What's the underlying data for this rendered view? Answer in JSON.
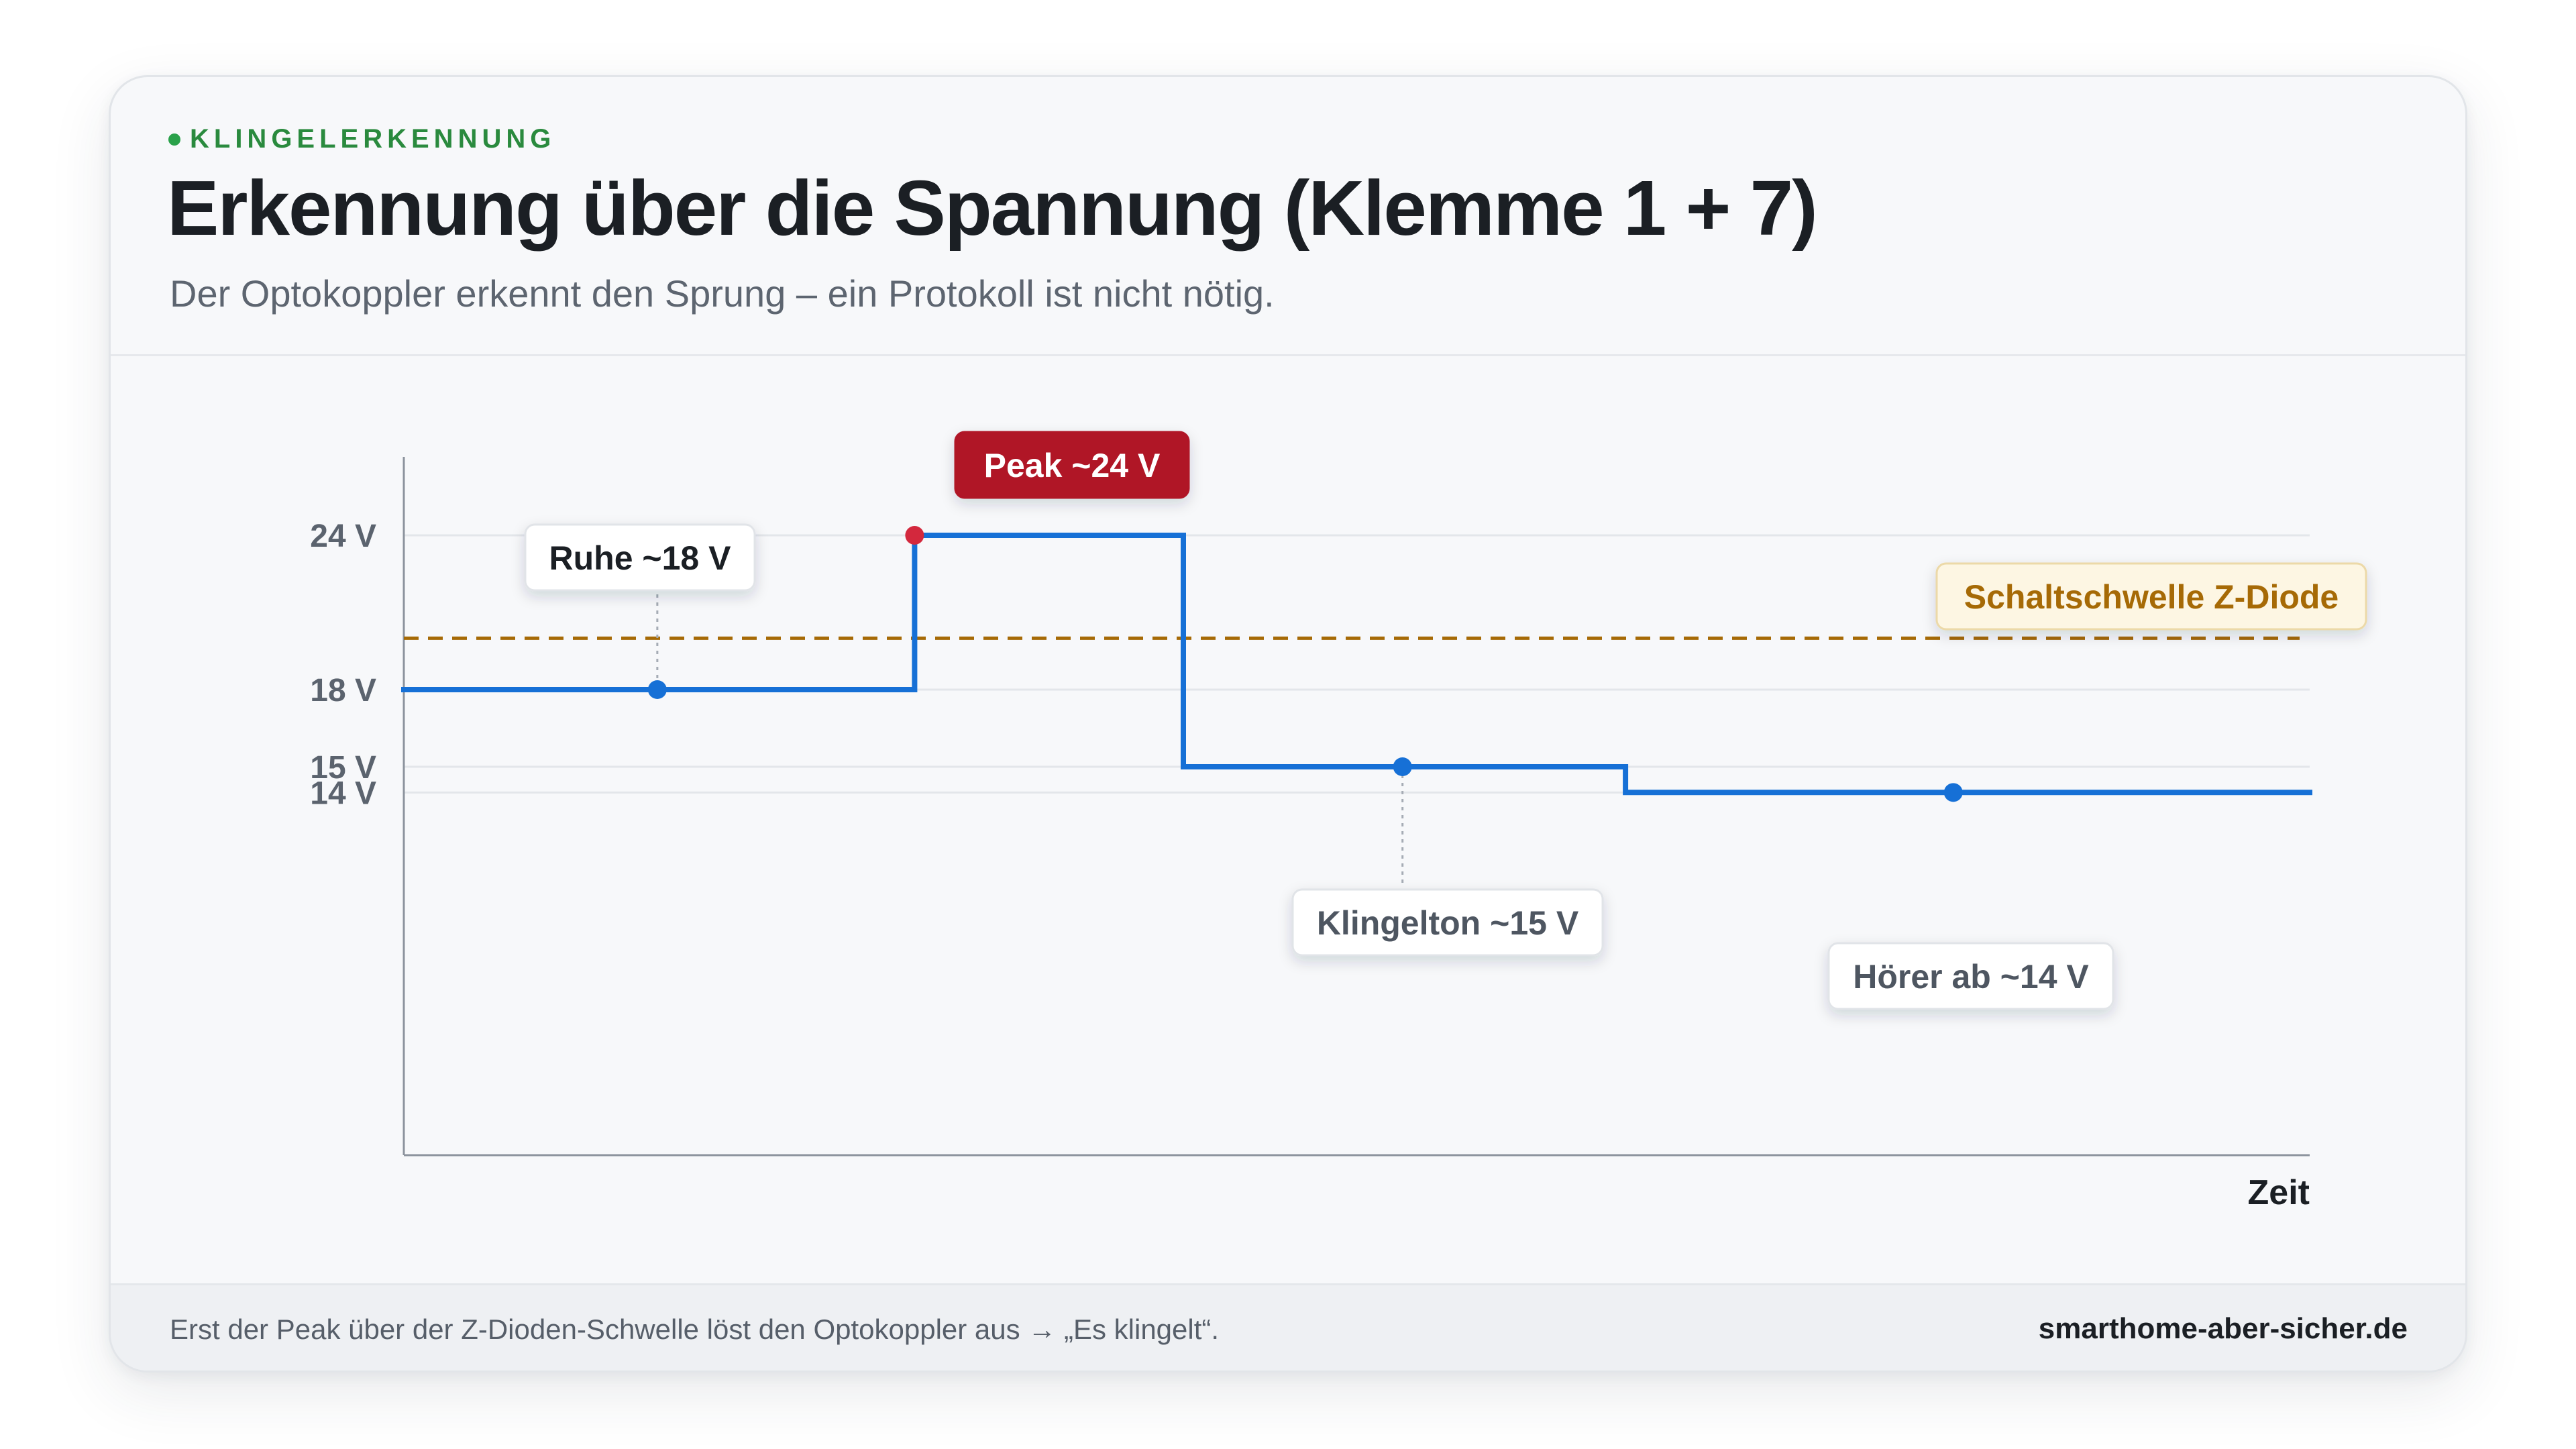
{
  "header": {
    "eyebrow": "KLINGELERKENNUNG",
    "title": "Erkennung über die Spannung (Klemme 1 + 7)",
    "subtitle": "Der Optokoppler erkennt den Sprung – ein Protokoll ist nicht nötig."
  },
  "footer": {
    "note": "Erst der Peak über der Z-Dioden-Schwelle löst den Optokoppler aus → „Es klingelt“.",
    "brand": "smarthome-aber-sicher.de"
  },
  "colors": {
    "line": "#1670d6",
    "peak": "#b01227",
    "threshold": "#a66a06",
    "threshold_label_bg": "#fdf6e3"
  },
  "chart_data": {
    "type": "line",
    "xlabel": "Zeit",
    "ylabel": "",
    "ylim": [
      0,
      24
    ],
    "xlim": [
      0,
      100
    ],
    "y_ticks": [
      {
        "value": 24,
        "label": "24 V"
      },
      {
        "value": 18,
        "label": "18 V"
      },
      {
        "value": 15,
        "label": "15 V"
      },
      {
        "value": 14,
        "label": "14 V"
      }
    ],
    "grid": true,
    "series": [
      {
        "step": [
          {
            "x": 0,
            "y": 18
          },
          {
            "x": 26.8,
            "y": 18
          },
          {
            "x": 26.8,
            "y": 24
          },
          {
            "x": 40.9,
            "y": 24
          },
          {
            "x": 40.9,
            "y": 15
          },
          {
            "x": 64.1,
            "y": 15
          },
          {
            "x": 64.1,
            "y": 14
          },
          {
            "x": 100,
            "y": 14
          }
        ]
      }
    ],
    "threshold": {
      "value": 20,
      "label": "Schaltschwelle Z-Diode"
    },
    "annotations": [
      {
        "x": 13.3,
        "y": 18,
        "label": "Ruhe ~18 V",
        "style": "neutral"
      },
      {
        "x": 26.8,
        "y": 24,
        "label": "Peak ~24 V",
        "style": "peak"
      },
      {
        "x": 52.4,
        "y": 15,
        "label": "Klingelton ~15 V",
        "style": "neutral"
      },
      {
        "x": 81.3,
        "y": 14,
        "label": "Hörer ab ~14 V",
        "style": "neutral"
      }
    ]
  }
}
